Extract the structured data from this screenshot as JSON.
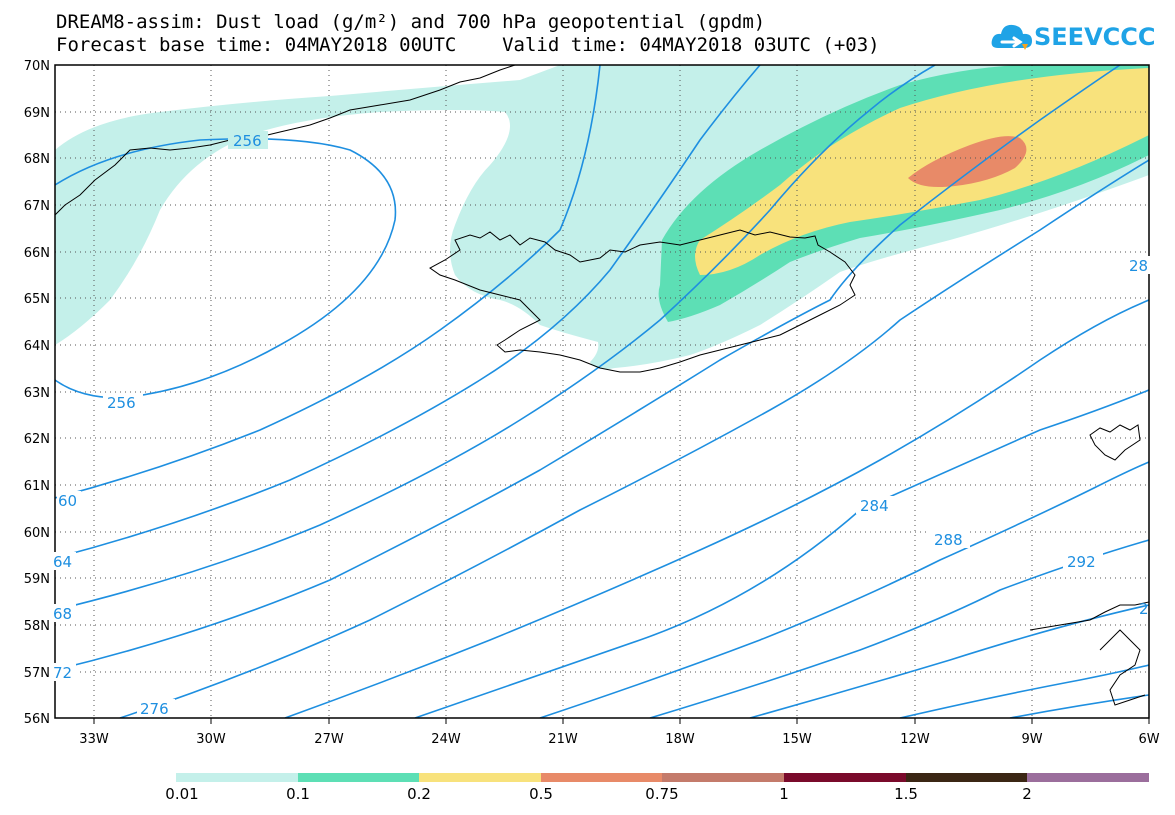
{
  "header": {
    "title_line1": "DREAM8-assim: Dust load (g/m²) and 700 hPa geopotential (gpdm)",
    "title_line2": "Forecast base time: 04MAY2018 00UTC    Valid time: 04MAY2018 03UTC (+03)",
    "logo_text": "SEEVCCC"
  },
  "map": {
    "lon_range": [
      -34.0,
      -6.0
    ],
    "lat_range": [
      56.0,
      70.0
    ],
    "lon_ticks": [
      "33W",
      "30W",
      "27W",
      "24W",
      "21W",
      "18W",
      "15W",
      "12W",
      "9W",
      "6W"
    ],
    "lat_ticks": [
      "56N",
      "57N",
      "58N",
      "59N",
      "60N",
      "61N",
      "62N",
      "63N",
      "64N",
      "65N",
      "66N",
      "67N",
      "68N",
      "69N",
      "70N"
    ],
    "contour_labels": [
      "256",
      "256",
      "60",
      "64",
      "68",
      "72",
      "276",
      "284",
      "288",
      "292",
      "28",
      "2"
    ],
    "colors": {
      "dust_0_01": "#c4f0ea",
      "dust_0_1": "#5ddfb5",
      "dust_0_2": "#f8e27c",
      "dust_0_5": "#e88a68",
      "contour": "#1e8fe0",
      "coast": "#000000"
    }
  },
  "legend": {
    "labels": [
      "0.01",
      "0.1",
      "0.2",
      "0.5",
      "0.75",
      "1",
      "1.5",
      "2"
    ],
    "colors": [
      "#c4f0ea",
      "#5ddfb5",
      "#f8e27c",
      "#e88a68",
      "#c47b6b",
      "#7a0a2b",
      "#3b2614",
      "#9b6e9c"
    ]
  }
}
